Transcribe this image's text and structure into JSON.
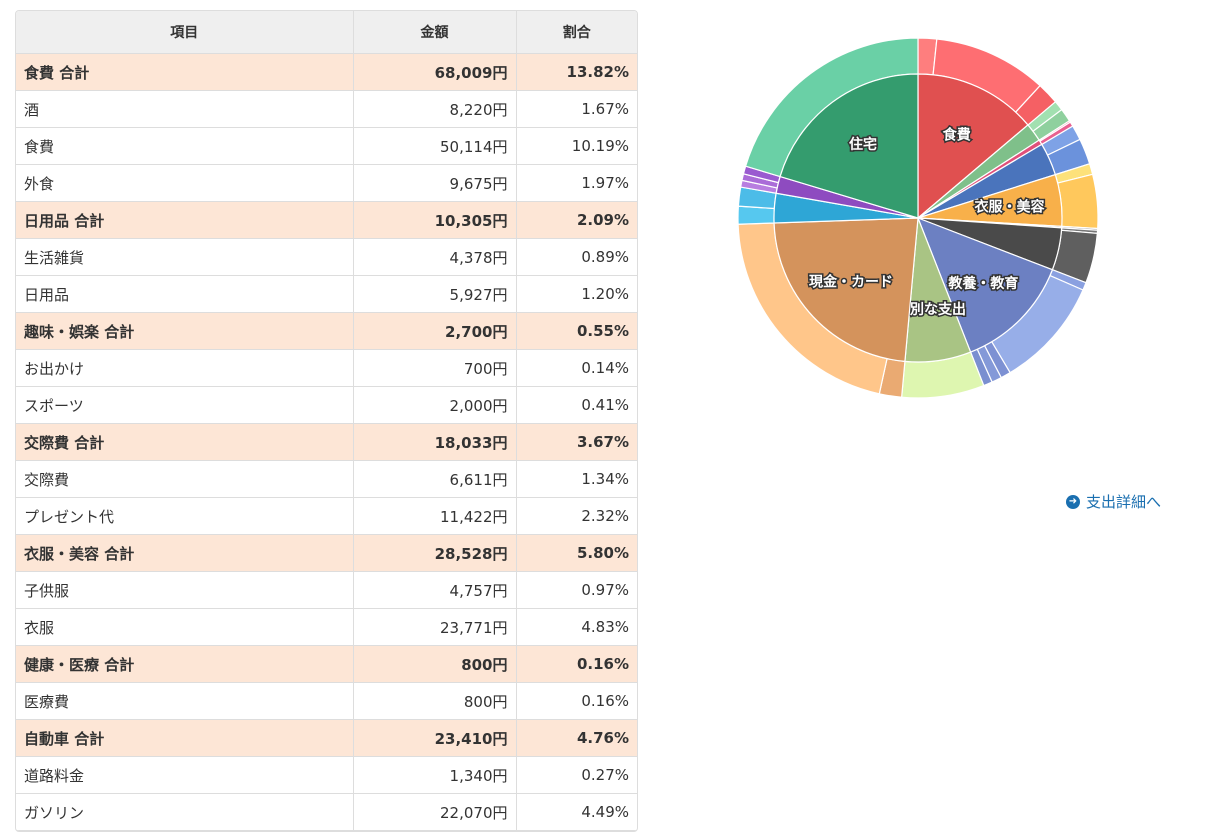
{
  "table": {
    "headers": [
      "項目",
      "金額",
      "割合"
    ],
    "rows": [
      {
        "name": "食費 合計",
        "amount": "68,009円",
        "pct": "13.82%",
        "total": true
      },
      {
        "name": "酒",
        "amount": "8,220円",
        "pct": "1.67%",
        "total": false
      },
      {
        "name": "食費",
        "amount": "50,114円",
        "pct": "10.19%",
        "total": false
      },
      {
        "name": "外食",
        "amount": "9,675円",
        "pct": "1.97%",
        "total": false
      },
      {
        "name": "日用品 合計",
        "amount": "10,305円",
        "pct": "2.09%",
        "total": true
      },
      {
        "name": "生活雑貨",
        "amount": "4,378円",
        "pct": "0.89%",
        "total": false
      },
      {
        "name": "日用品",
        "amount": "5,927円",
        "pct": "1.20%",
        "total": false
      },
      {
        "name": "趣味・娯楽 合計",
        "amount": "2,700円",
        "pct": "0.55%",
        "total": true
      },
      {
        "name": "お出かけ",
        "amount": "700円",
        "pct": "0.14%",
        "total": false
      },
      {
        "name": "スポーツ",
        "amount": "2,000円",
        "pct": "0.41%",
        "total": false
      },
      {
        "name": "交際費 合計",
        "amount": "18,033円",
        "pct": "3.67%",
        "total": true
      },
      {
        "name": "交際費",
        "amount": "6,611円",
        "pct": "1.34%",
        "total": false
      },
      {
        "name": "プレゼント代",
        "amount": "11,422円",
        "pct": "2.32%",
        "total": false
      },
      {
        "name": "衣服・美容 合計",
        "amount": "28,528円",
        "pct": "5.80%",
        "total": true
      },
      {
        "name": "子供服",
        "amount": "4,757円",
        "pct": "0.97%",
        "total": false
      },
      {
        "name": "衣服",
        "amount": "23,771円",
        "pct": "4.83%",
        "total": false
      },
      {
        "name": "健康・医療 合計",
        "amount": "800円",
        "pct": "0.16%",
        "total": true
      },
      {
        "name": "医療費",
        "amount": "800円",
        "pct": "0.16%",
        "total": false
      },
      {
        "name": "自動車 合計",
        "amount": "23,410円",
        "pct": "4.76%",
        "total": true
      },
      {
        "name": "道路料金",
        "amount": "1,340円",
        "pct": "0.27%",
        "total": false
      },
      {
        "name": "ガソリン",
        "amount": "22,070円",
        "pct": "4.49%",
        "total": false
      }
    ]
  },
  "link": {
    "label": "支出詳細へ",
    "icon": "circle-arrow-right-icon"
  },
  "chart_data": {
    "type": "pie",
    "inner": [
      {
        "label": "食費",
        "value": 13.82,
        "color": "#e05050",
        "show": true
      },
      {
        "label": "",
        "value": 2.09,
        "color": "#7fc08a",
        "show": false
      },
      {
        "label": "",
        "value": 0.55,
        "color": "#e0507a",
        "show": false
      },
      {
        "label": "",
        "value": 3.67,
        "color": "#4a74bc",
        "show": false
      },
      {
        "label": "衣服・美容",
        "value": 5.8,
        "color": "#f8b04a",
        "show": true
      },
      {
        "label": "",
        "value": 0.16,
        "color": "#888888",
        "show": false
      },
      {
        "label": "",
        "value": 4.76,
        "color": "#4a4a4a",
        "show": false
      },
      {
        "label": "教養・教育",
        "value": 13.2,
        "color": "#6c80c2",
        "show": true
      },
      {
        "label": "特別な支出",
        "value": 7.4,
        "color": "#a9c484",
        "show": true
      },
      {
        "label": "現金・カード",
        "value": 23.0,
        "color": "#d4935c",
        "show": true
      },
      {
        "label": "",
        "value": 3.3,
        "color": "#2ea6d6",
        "show": false
      },
      {
        "label": "",
        "value": 1.9,
        "color": "#8e4bc0",
        "show": false
      },
      {
        "label": "住宅",
        "value": 20.35,
        "color": "#349c6e",
        "show": true
      }
    ],
    "outer": [
      {
        "value": 1.67,
        "color": "#fe7e7e"
      },
      {
        "value": 10.19,
        "color": "#fe6e72"
      },
      {
        "value": 1.97,
        "color": "#f56064"
      },
      {
        "value": 0.89,
        "color": "#a2e0b0"
      },
      {
        "value": 1.2,
        "color": "#8fd09e"
      },
      {
        "value": 0.14,
        "color": "#f07098"
      },
      {
        "value": 0.41,
        "color": "#e86090"
      },
      {
        "value": 1.34,
        "color": "#7ea2e6"
      },
      {
        "value": 2.32,
        "color": "#6b92dc"
      },
      {
        "value": 0.97,
        "color": "#fde17a"
      },
      {
        "value": 4.83,
        "color": "#ffc85c"
      },
      {
        "value": 0.16,
        "color": "#aaaaaa"
      },
      {
        "value": 0.27,
        "color": "#777777"
      },
      {
        "value": 4.49,
        "color": "#5f5f5f"
      },
      {
        "value": 0.7,
        "color": "#8aa0e0"
      },
      {
        "value": 9.9,
        "color": "#97aee8"
      },
      {
        "value": 0.9,
        "color": "#7d91d3"
      },
      {
        "value": 0.9,
        "color": "#8499d8"
      },
      {
        "value": 0.8,
        "color": "#7a8fd0"
      },
      {
        "value": 7.4,
        "color": "#def6b0"
      },
      {
        "value": 2.0,
        "color": "#eaaa72"
      },
      {
        "value": 21.0,
        "color": "#ffc68a"
      },
      {
        "value": 1.6,
        "color": "#56c8ef"
      },
      {
        "value": 1.7,
        "color": "#4cbce8"
      },
      {
        "value": 0.6,
        "color": "#b87ee0"
      },
      {
        "value": 0.6,
        "color": "#aa6cd8"
      },
      {
        "value": 0.7,
        "color": "#9a5ad0"
      },
      {
        "value": 20.35,
        "color": "#6ad0a6"
      }
    ]
  }
}
